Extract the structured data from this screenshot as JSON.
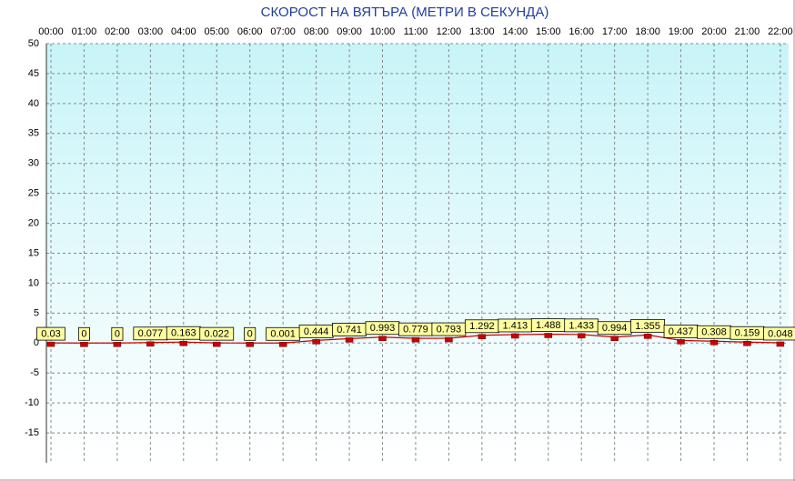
{
  "chart_data": {
    "type": "line",
    "title": "СКОРОСТ НА ВЯТЪРА (МЕТРИ В СЕКУНДА)",
    "categories": [
      "00:00",
      "01:00",
      "02:00",
      "03:00",
      "04:00",
      "05:00",
      "06:00",
      "07:00",
      "08:00",
      "09:00",
      "10:00",
      "11:00",
      "12:00",
      "13:00",
      "14:00",
      "15:00",
      "16:00",
      "17:00",
      "18:00",
      "19:00",
      "20:00",
      "21:00",
      "22:00"
    ],
    "values": [
      0.03,
      0,
      0,
      0.077,
      0.163,
      0.022,
      0,
      0.001,
      0.444,
      0.741,
      0.993,
      0.779,
      0.793,
      1.292,
      1.413,
      1.488,
      1.433,
      0.994,
      1.355,
      0.437,
      0.308,
      0.159,
      0.048
    ],
    "color": "#cc0000",
    "ylim": [
      -20,
      50
    ],
    "yticks": [
      -15,
      -10,
      -5,
      0,
      5,
      10,
      15,
      20,
      25,
      30,
      35,
      40,
      45,
      50
    ],
    "grid": true
  }
}
